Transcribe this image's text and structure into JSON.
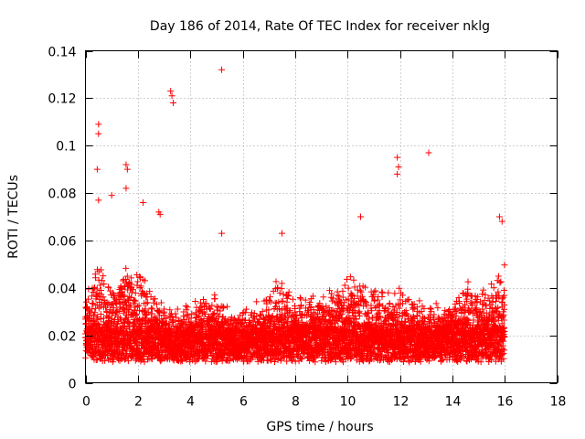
{
  "chart_data": {
    "type": "scatter",
    "title": "Day 186 of 2014, Rate Of TEC Index for receiver nklg",
    "xlabel": "GPS time / hours",
    "ylabel": "ROTI / TECUs",
    "xlim": [
      0,
      18
    ],
    "ylim": [
      0,
      0.14
    ],
    "xticks": [
      "0",
      "2",
      "4",
      "6",
      "8",
      "10",
      "12",
      "14",
      "16",
      "18"
    ],
    "yticks": [
      "0",
      "0.02",
      "0.04",
      "0.06",
      "0.08",
      "0.1",
      "0.12",
      "0.14"
    ],
    "grid": true,
    "marker": "plus",
    "series_color": "#ff0000",
    "sampling_interval_hours": 0.0083,
    "x_range_observed": [
      0,
      16
    ],
    "notable_points": [
      {
        "x": 0.5,
        "y": 0.109
      },
      {
        "x": 0.5,
        "y": 0.105
      },
      {
        "x": 0.45,
        "y": 0.09
      },
      {
        "x": 0.5,
        "y": 0.077
      },
      {
        "x": 1.0,
        "y": 0.079
      },
      {
        "x": 1.55,
        "y": 0.092
      },
      {
        "x": 1.6,
        "y": 0.09
      },
      {
        "x": 1.55,
        "y": 0.082
      },
      {
        "x": 2.2,
        "y": 0.076
      },
      {
        "x": 2.8,
        "y": 0.072
      },
      {
        "x": 2.85,
        "y": 0.071
      },
      {
        "x": 3.25,
        "y": 0.123
      },
      {
        "x": 3.3,
        "y": 0.121
      },
      {
        "x": 3.35,
        "y": 0.118
      },
      {
        "x": 5.2,
        "y": 0.132
      },
      {
        "x": 5.2,
        "y": 0.063
      },
      {
        "x": 7.5,
        "y": 0.063
      },
      {
        "x": 10.5,
        "y": 0.07
      },
      {
        "x": 11.9,
        "y": 0.095
      },
      {
        "x": 11.95,
        "y": 0.091
      },
      {
        "x": 11.9,
        "y": 0.088
      },
      {
        "x": 13.1,
        "y": 0.097
      },
      {
        "x": 15.8,
        "y": 0.07
      },
      {
        "x": 15.9,
        "y": 0.068
      }
    ],
    "activity_profile": [
      {
        "x": 0.0,
        "spread": 0.018
      },
      {
        "x": 0.5,
        "spread": 0.028
      },
      {
        "x": 1.0,
        "spread": 0.022
      },
      {
        "x": 1.5,
        "spread": 0.03
      },
      {
        "x": 2.0,
        "spread": 0.028
      },
      {
        "x": 2.5,
        "spread": 0.02
      },
      {
        "x": 3.0,
        "spread": 0.012
      },
      {
        "x": 3.5,
        "spread": 0.01
      },
      {
        "x": 4.0,
        "spread": 0.012
      },
      {
        "x": 4.5,
        "spread": 0.015
      },
      {
        "x": 5.0,
        "spread": 0.016
      },
      {
        "x": 5.5,
        "spread": 0.01
      },
      {
        "x": 6.0,
        "spread": 0.009
      },
      {
        "x": 6.5,
        "spread": 0.014
      },
      {
        "x": 7.0,
        "spread": 0.018
      },
      {
        "x": 7.5,
        "spread": 0.022
      },
      {
        "x": 8.0,
        "spread": 0.016
      },
      {
        "x": 8.5,
        "spread": 0.014
      },
      {
        "x": 9.0,
        "spread": 0.018
      },
      {
        "x": 9.5,
        "spread": 0.02
      },
      {
        "x": 10.0,
        "spread": 0.022
      },
      {
        "x": 10.5,
        "spread": 0.026
      },
      {
        "x": 11.0,
        "spread": 0.02
      },
      {
        "x": 11.5,
        "spread": 0.016
      },
      {
        "x": 12.0,
        "spread": 0.02
      },
      {
        "x": 12.5,
        "spread": 0.016
      },
      {
        "x": 13.0,
        "spread": 0.012
      },
      {
        "x": 13.5,
        "spread": 0.012
      },
      {
        "x": 14.0,
        "spread": 0.012
      },
      {
        "x": 14.5,
        "spread": 0.022
      },
      {
        "x": 15.0,
        "spread": 0.018
      },
      {
        "x": 15.5,
        "spread": 0.022
      },
      {
        "x": 16.0,
        "spread": 0.03
      }
    ],
    "baseline_y": 0.015
  }
}
